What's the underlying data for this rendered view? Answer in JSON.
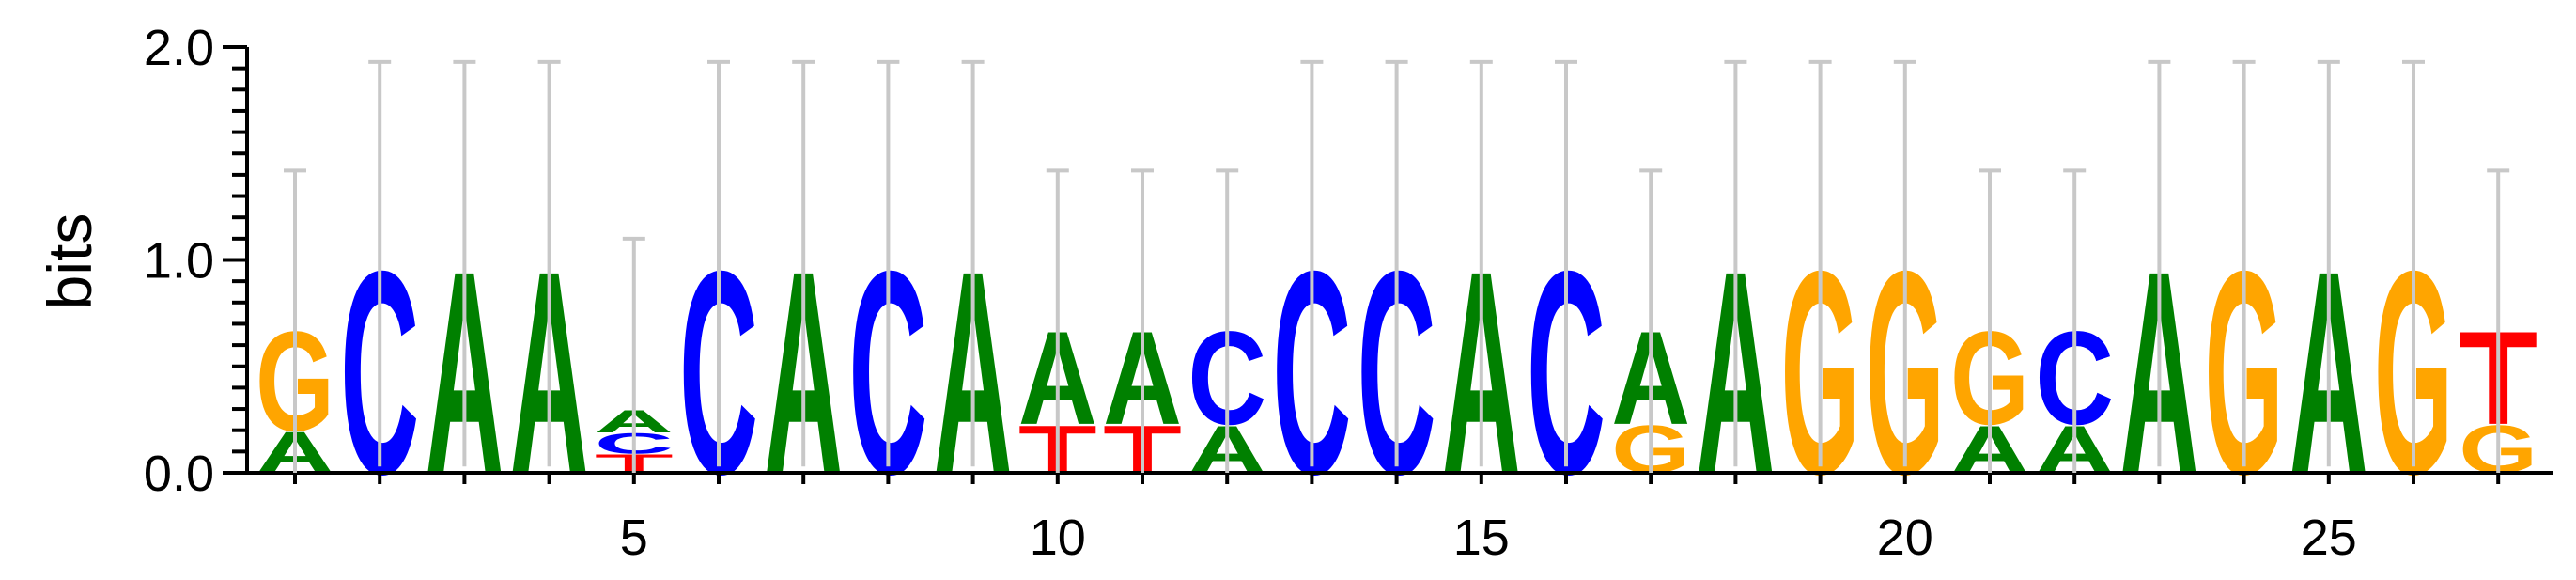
{
  "chart_data": {
    "type": "sequence-logo",
    "ylabel": "bits",
    "ylim": [
      0,
      2
    ],
    "yticks": [
      "0.0",
      "1.0",
      "2.0"
    ],
    "xticks": [
      5,
      10,
      15,
      20,
      25
    ],
    "colors": {
      "A": "#008000",
      "C": "#0000ff",
      "G": "#ffa500",
      "T": "#ff0000"
    },
    "positions": [
      {
        "pos": 1,
        "stack": [
          [
            "A",
            0.2
          ],
          [
            "G",
            0.48
          ]
        ],
        "err": 1.42
      },
      {
        "pos": 2,
        "stack": [
          [
            "C",
            0.98
          ]
        ],
        "err": 1.93
      },
      {
        "pos": 3,
        "stack": [
          [
            "A",
            0.98
          ]
        ],
        "err": 1.93
      },
      {
        "pos": 4,
        "stack": [
          [
            "A",
            0.98
          ]
        ],
        "err": 1.93
      },
      {
        "pos": 5,
        "stack": [
          [
            "T",
            0.09
          ],
          [
            "C",
            0.1
          ],
          [
            "A",
            0.11
          ]
        ],
        "err": 1.1
      },
      {
        "pos": 6,
        "stack": [
          [
            "C",
            0.98
          ]
        ],
        "err": 1.93
      },
      {
        "pos": 7,
        "stack": [
          [
            "A",
            0.98
          ]
        ],
        "err": 1.93
      },
      {
        "pos": 8,
        "stack": [
          [
            "C",
            0.98
          ]
        ],
        "err": 1.93
      },
      {
        "pos": 9,
        "stack": [
          [
            "A",
            0.98
          ]
        ],
        "err": 1.93
      },
      {
        "pos": 10,
        "stack": [
          [
            "T",
            0.23
          ],
          [
            "A",
            0.45
          ]
        ],
        "err": 1.42
      },
      {
        "pos": 11,
        "stack": [
          [
            "T",
            0.23
          ],
          [
            "A",
            0.45
          ]
        ],
        "err": 1.42
      },
      {
        "pos": 12,
        "stack": [
          [
            "A",
            0.23
          ],
          [
            "C",
            0.45
          ]
        ],
        "err": 1.42
      },
      {
        "pos": 13,
        "stack": [
          [
            "C",
            0.98
          ]
        ],
        "err": 1.93
      },
      {
        "pos": 14,
        "stack": [
          [
            "C",
            0.98
          ]
        ],
        "err": 1.93
      },
      {
        "pos": 15,
        "stack": [
          [
            "A",
            0.98
          ]
        ],
        "err": 1.93
      },
      {
        "pos": 16,
        "stack": [
          [
            "C",
            0.98
          ]
        ],
        "err": 1.93
      },
      {
        "pos": 17,
        "stack": [
          [
            "G",
            0.23
          ],
          [
            "A",
            0.45
          ]
        ],
        "err": 1.42
      },
      {
        "pos": 18,
        "stack": [
          [
            "A",
            0.98
          ]
        ],
        "err": 1.93
      },
      {
        "pos": 19,
        "stack": [
          [
            "G",
            0.98
          ]
        ],
        "err": 1.93
      },
      {
        "pos": 20,
        "stack": [
          [
            "G",
            0.98
          ]
        ],
        "err": 1.93
      },
      {
        "pos": 21,
        "stack": [
          [
            "A",
            0.23
          ],
          [
            "G",
            0.45
          ]
        ],
        "err": 1.42
      },
      {
        "pos": 22,
        "stack": [
          [
            "A",
            0.23
          ],
          [
            "C",
            0.45
          ]
        ],
        "err": 1.42
      },
      {
        "pos": 23,
        "stack": [
          [
            "A",
            0.98
          ]
        ],
        "err": 1.93
      },
      {
        "pos": 24,
        "stack": [
          [
            "G",
            0.98
          ]
        ],
        "err": 1.93
      },
      {
        "pos": 25,
        "stack": [
          [
            "A",
            0.98
          ]
        ],
        "err": 1.93
      },
      {
        "pos": 26,
        "stack": [
          [
            "G",
            0.98
          ]
        ],
        "err": 1.93
      },
      {
        "pos": 27,
        "stack": [
          [
            "G",
            0.23
          ],
          [
            "T",
            0.45
          ]
        ],
        "err": 1.42
      }
    ]
  }
}
